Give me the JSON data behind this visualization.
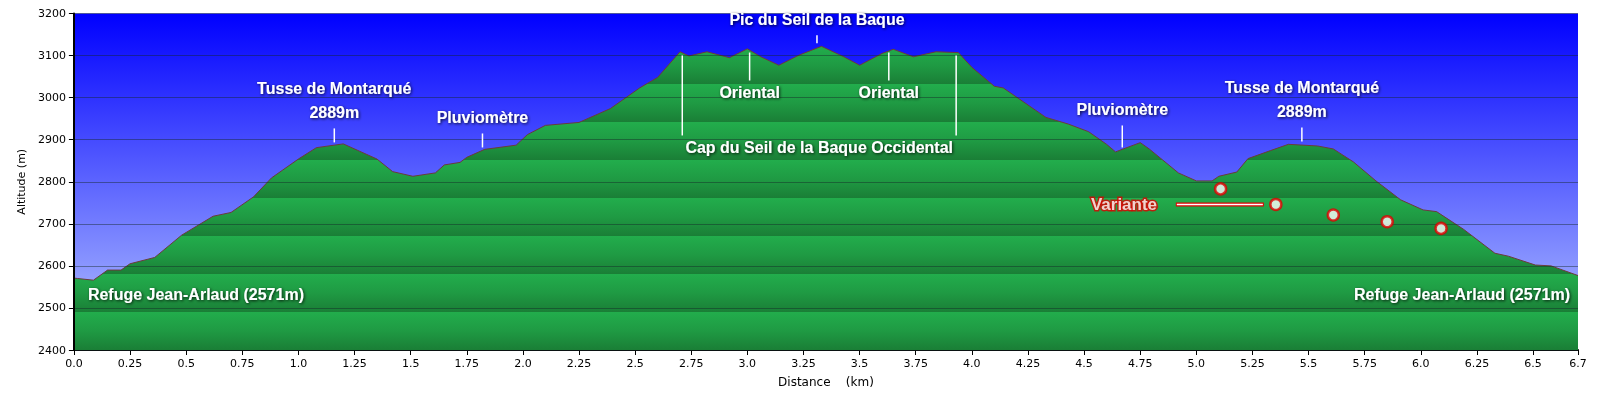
{
  "chart_data": {
    "type": "area",
    "xlabel": "Distance    (km)",
    "ylabel": "Altitude (m)",
    "xlim": [
      0,
      6.7
    ],
    "ylim": [
      2400,
      3200
    ],
    "xticks": [
      {
        "value": 0,
        "label": "0.0"
      },
      0.25,
      0.5,
      0.75,
      {
        "value": 1,
        "label": "1.0"
      },
      1.25,
      1.5,
      1.75,
      {
        "value": 2,
        "label": "2.0"
      },
      2.25,
      2.5,
      2.75,
      {
        "value": 3,
        "label": "3.0"
      },
      3.25,
      3.5,
      3.75,
      {
        "value": 4,
        "label": "4.0"
      },
      4.25,
      4.5,
      4.75,
      {
        "value": 5,
        "label": "5.0"
      },
      5.25,
      5.5,
      5.75,
      {
        "value": 6,
        "label": "6.0"
      },
      6.25,
      6.5,
      6.7
    ],
    "yticks": [
      2400,
      2500,
      2600,
      2700,
      2800,
      2900,
      3000,
      3100,
      3200
    ],
    "grid": "y",
    "legend": false,
    "series": [
      {
        "color": "#22a84a",
        "x": [
          0,
          0.016,
          0.087,
          0.15,
          0.21,
          0.25,
          0.36,
          0.48,
          0.62,
          0.7,
          0.8,
          0.88,
          1.0,
          1.08,
          1.2,
          1.35,
          1.42,
          1.51,
          1.61,
          1.65,
          1.72,
          1.75,
          1.83,
          1.97,
          2.02,
          2.1,
          2.25,
          2.39,
          2.52,
          2.6,
          2.7,
          2.74,
          2.82,
          2.92,
          3.0,
          3.06,
          3.14,
          3.23,
          3.33,
          3.43,
          3.5,
          3.6,
          3.65,
          3.74,
          3.84,
          3.94,
          4.0,
          4.1,
          4.14,
          4.33,
          4.43,
          4.52,
          4.6,
          4.64,
          4.75,
          4.79,
          4.92,
          5.0,
          5.07,
          5.1,
          5.18,
          5.23,
          5.33,
          5.41,
          5.54,
          5.61,
          5.7,
          5.8,
          5.91,
          6.01,
          6.07,
          6.19,
          6.33,
          6.39,
          6.51,
          6.58,
          6.7
        ],
        "values": [
          2571,
          2570,
          2566,
          2590,
          2590,
          2605,
          2620,
          2673,
          2718,
          2727,
          2764,
          2809,
          2854,
          2881,
          2890,
          2854,
          2824,
          2813,
          2821,
          2840,
          2846,
          2858,
          2877,
          2887,
          2912,
          2934,
          2941,
          2974,
          3023,
          3048,
          3109,
          3099,
          3109,
          3095,
          3116,
          3097,
          3077,
          3101,
          3122,
          3097,
          3077,
          3105,
          3115,
          3097,
          3109,
          3107,
          3072,
          3027,
          3023,
          2953,
          2937,
          2919,
          2889,
          2871,
          2893,
          2878,
          2821,
          2802,
          2802,
          2813,
          2823,
          2855,
          2874,
          2889,
          2885,
          2878,
          2847,
          2802,
          2757,
          2733,
          2729,
          2687,
          2630,
          2623,
          2602,
          2600,
          2577
        ]
      },
      {
        "type": "scatter",
        "name": "Variante",
        "color": "#e00000",
        "marker": "circle",
        "x": [
          5.108,
          5.354,
          5.61,
          5.85,
          6.09
        ],
        "values": [
          2783,
          2746,
          2721,
          2705,
          2689
        ]
      }
    ],
    "annotations": [
      {
        "text": "Tusse de Montarqué\n2889m",
        "x": 1.16,
        "y": 2884
      },
      {
        "text": "Pluviomètre",
        "x": 1.82,
        "y": 2872
      },
      {
        "text": "Pic du Seil de la Baque",
        "x": 3.31,
        "y": 3120
      },
      {
        "text": "Oriental",
        "x": 3.01,
        "y": 3112
      },
      {
        "text": "Oriental",
        "x": 3.63,
        "y": 3112
      },
      {
        "text": "Cap du Seil de la Baque Occidental",
        "x": 2.71,
        "y": 3105
      },
      {
        "text": "Pluviomètre",
        "x": 4.67,
        "y": 2872
      },
      {
        "text": "Tusse de Montarqué\n2889m",
        "x": 5.47,
        "y": 2886
      },
      {
        "text": "Refuge Jean-Arlaud (2571m)",
        "x": 0,
        "y": 2571
      },
      {
        "text": "Refuge Jean-Arlaud (2571m)",
        "x": 6.7,
        "y": 2571
      }
    ]
  }
}
